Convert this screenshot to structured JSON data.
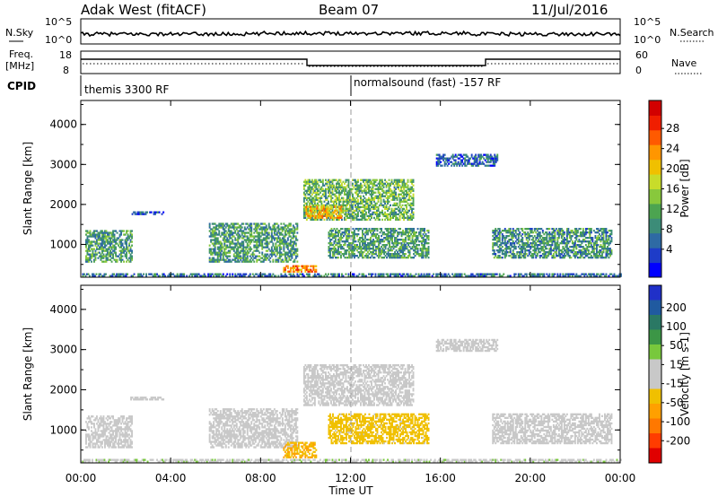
{
  "header": {
    "station": "Adak West (fitACF)",
    "beam": "Beam 07",
    "date": "11/Jul/2016"
  },
  "top_panels": {
    "nsky_label": "N.Sky",
    "nsky_ticks": [
      "10^5",
      "10^0"
    ],
    "nsearch_label": "N.Search",
    "freq_label_line1": "Freq.",
    "freq_label_line2": "[MHz]",
    "freq_ticks": [
      "18",
      "8"
    ],
    "nave_label": "Nave",
    "nave_ticks": [
      "60",
      "0"
    ],
    "cpid_label": "CPID",
    "cpid_1": "themis 3300 RF",
    "cpid_2": "normalsound (fast) -157 RF"
  },
  "colorbars": {
    "power": {
      "label": "Power [dB]",
      "ticks": [
        "28",
        "24",
        "20",
        "16",
        "12",
        "8",
        "4"
      ],
      "colors": [
        "#0000ff",
        "#1e3cc8",
        "#2e6aa4",
        "#3c8c78",
        "#4ca450",
        "#88c83c",
        "#c8dc2a",
        "#f0c000",
        "#ff9600",
        "#ff5a00",
        "#f01e00",
        "#d20000"
      ]
    },
    "velocity": {
      "label": "Velocity [m s-1]",
      "ticks": [
        "200",
        "100",
        "50",
        "15",
        "-15",
        "-50",
        "-100",
        "-200"
      ],
      "colors": [
        "#2030c8",
        "#205aa0",
        "#2a7864",
        "#3c9646",
        "#78c83c",
        "#c8c8c8",
        "#c8c8c8",
        "#f0c000",
        "#ffa000",
        "#ff7800",
        "#ff3c00",
        "#e00000"
      ]
    }
  },
  "axes": {
    "ylabel": "Slant Range [km]",
    "xlabel": "Time UT",
    "y_ticks": [
      "1000",
      "2000",
      "3000",
      "4000"
    ],
    "x_ticks": [
      "00:00",
      "04:00",
      "08:00",
      "12:00",
      "16:00",
      "20:00",
      "00:00"
    ]
  },
  "chart_data": [
    {
      "type": "heatmap",
      "name": "Power",
      "units": "dB",
      "x_unit": "UT hours",
      "xlim": [
        0,
        24
      ],
      "ylim": [
        180,
        4600
      ],
      "clim": [
        0,
        30
      ],
      "echo_regions": [
        {
          "t0": 0.2,
          "t1": 2.3,
          "r0": 550,
          "r1": 1350,
          "val": 10
        },
        {
          "t0": 2.2,
          "t1": 3.7,
          "r0": 1740,
          "r1": 1820,
          "val": 6
        },
        {
          "t0": 5.7,
          "t1": 9.6,
          "r0": 550,
          "r1": 1500,
          "val": 10
        },
        {
          "t0": 9.9,
          "t1": 14.8,
          "r0": 1600,
          "r1": 2600,
          "val": 12
        },
        {
          "t0": 10.0,
          "t1": 11.6,
          "r0": 1650,
          "r1": 1950,
          "val": 20
        },
        {
          "t0": 11.0,
          "t1": 15.5,
          "r0": 650,
          "r1": 1400,
          "val": 10
        },
        {
          "t0": 9.0,
          "t1": 10.5,
          "r0": 300,
          "r1": 480,
          "val": 22
        },
        {
          "t0": 18.3,
          "t1": 23.6,
          "r0": 650,
          "r1": 1400,
          "val": 9
        },
        {
          "t0": 0.0,
          "t1": 24.0,
          "r0": 190,
          "r1": 260,
          "val": 7
        },
        {
          "t0": 15.8,
          "t1": 18.5,
          "r0": 2950,
          "r1": 3250,
          "val": 6
        }
      ]
    },
    {
      "type": "heatmap",
      "name": "Velocity",
      "units": "m s-1",
      "x_unit": "UT hours",
      "xlim": [
        0,
        24
      ],
      "ylim": [
        180,
        4600
      ],
      "clim": [
        -250,
        250
      ],
      "echo_regions": [
        {
          "t0": 0.2,
          "t1": 2.3,
          "r0": 550,
          "r1": 1350,
          "val": 0
        },
        {
          "t0": 2.2,
          "t1": 3.7,
          "r0": 1740,
          "r1": 1820,
          "val": 0
        },
        {
          "t0": 5.7,
          "t1": 9.6,
          "r0": 550,
          "r1": 1500,
          "val": 0
        },
        {
          "t0": 9.9,
          "t1": 14.8,
          "r0": 1600,
          "r1": 2600,
          "val": 0
        },
        {
          "t0": 11.0,
          "t1": 15.5,
          "r0": 650,
          "r1": 1400,
          "val": -60
        },
        {
          "t0": 9.0,
          "t1": 10.5,
          "r0": 300,
          "r1": 700,
          "val": -80
        },
        {
          "t0": 18.3,
          "t1": 23.6,
          "r0": 650,
          "r1": 1400,
          "val": 0
        },
        {
          "t0": 0.0,
          "t1": 24.0,
          "r0": 190,
          "r1": 260,
          "val": 30
        },
        {
          "t0": 15.8,
          "t1": 18.5,
          "r0": 2950,
          "r1": 3250,
          "val": 0
        }
      ]
    }
  ]
}
